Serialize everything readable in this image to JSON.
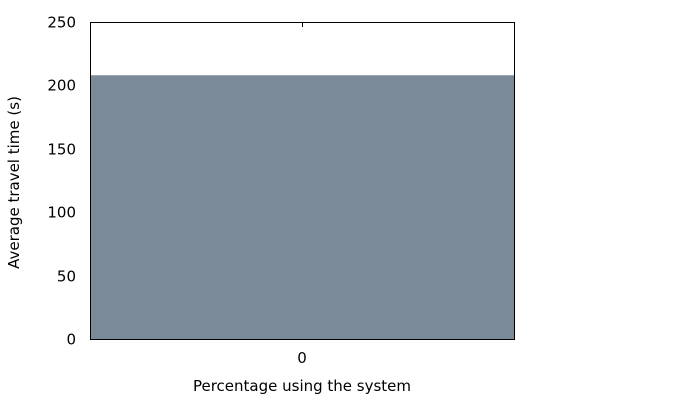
{
  "chart_data": {
    "type": "bar",
    "categories": [
      "0"
    ],
    "values": [
      208
    ],
    "xlabel": "Percentage using the system",
    "ylabel": "Average travel time (s)",
    "ylim": [
      0,
      250
    ],
    "yticks": [
      0,
      50,
      100,
      150,
      200,
      250
    ],
    "grid": false,
    "legend": "none",
    "bar_color": "#7a8a99",
    "axis_color": "#000000"
  }
}
